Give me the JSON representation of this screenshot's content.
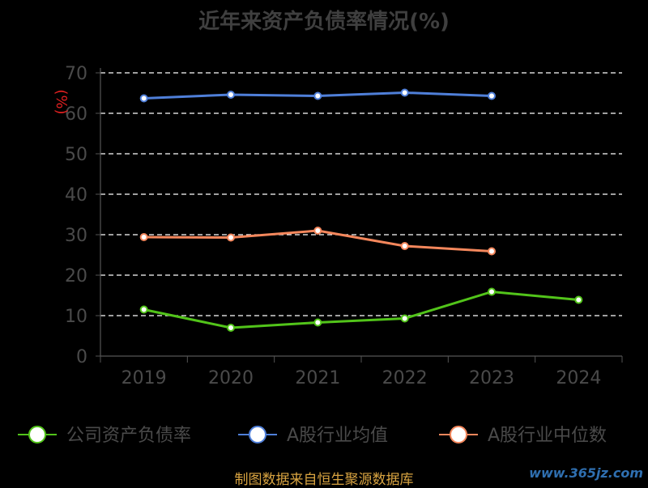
{
  "title": "近年来资产负债率情况(%)",
  "source_note": "制图数据来自恒生聚源数据库",
  "watermark": "www.365jz.com",
  "chart_data": {
    "type": "line",
    "title": "近年来资产负债率情况(%)",
    "xlabel": "",
    "ylabel": "(%)",
    "categories": [
      "2019",
      "2020",
      "2021",
      "2022",
      "2023",
      "2024"
    ],
    "ylim": [
      0,
      70
    ],
    "yticks": [
      0,
      10,
      20,
      30,
      40,
      50,
      60,
      70
    ],
    "grid": true,
    "legend_position": "bottom",
    "series": [
      {
        "name": "公司资产负债率",
        "color": "#52c41a",
        "values": [
          11.5,
          7.0,
          8.3,
          9.3,
          15.9,
          13.9
        ]
      },
      {
        "name": "A股行业均值",
        "color": "#4f7fd9",
        "values": [
          63.7,
          64.6,
          64.3,
          65.1,
          64.3,
          null
        ]
      },
      {
        "name": "A股行业中位数",
        "color": "#f4875c",
        "values": [
          29.4,
          29.3,
          31.0,
          27.2,
          25.9,
          null
        ]
      }
    ]
  }
}
